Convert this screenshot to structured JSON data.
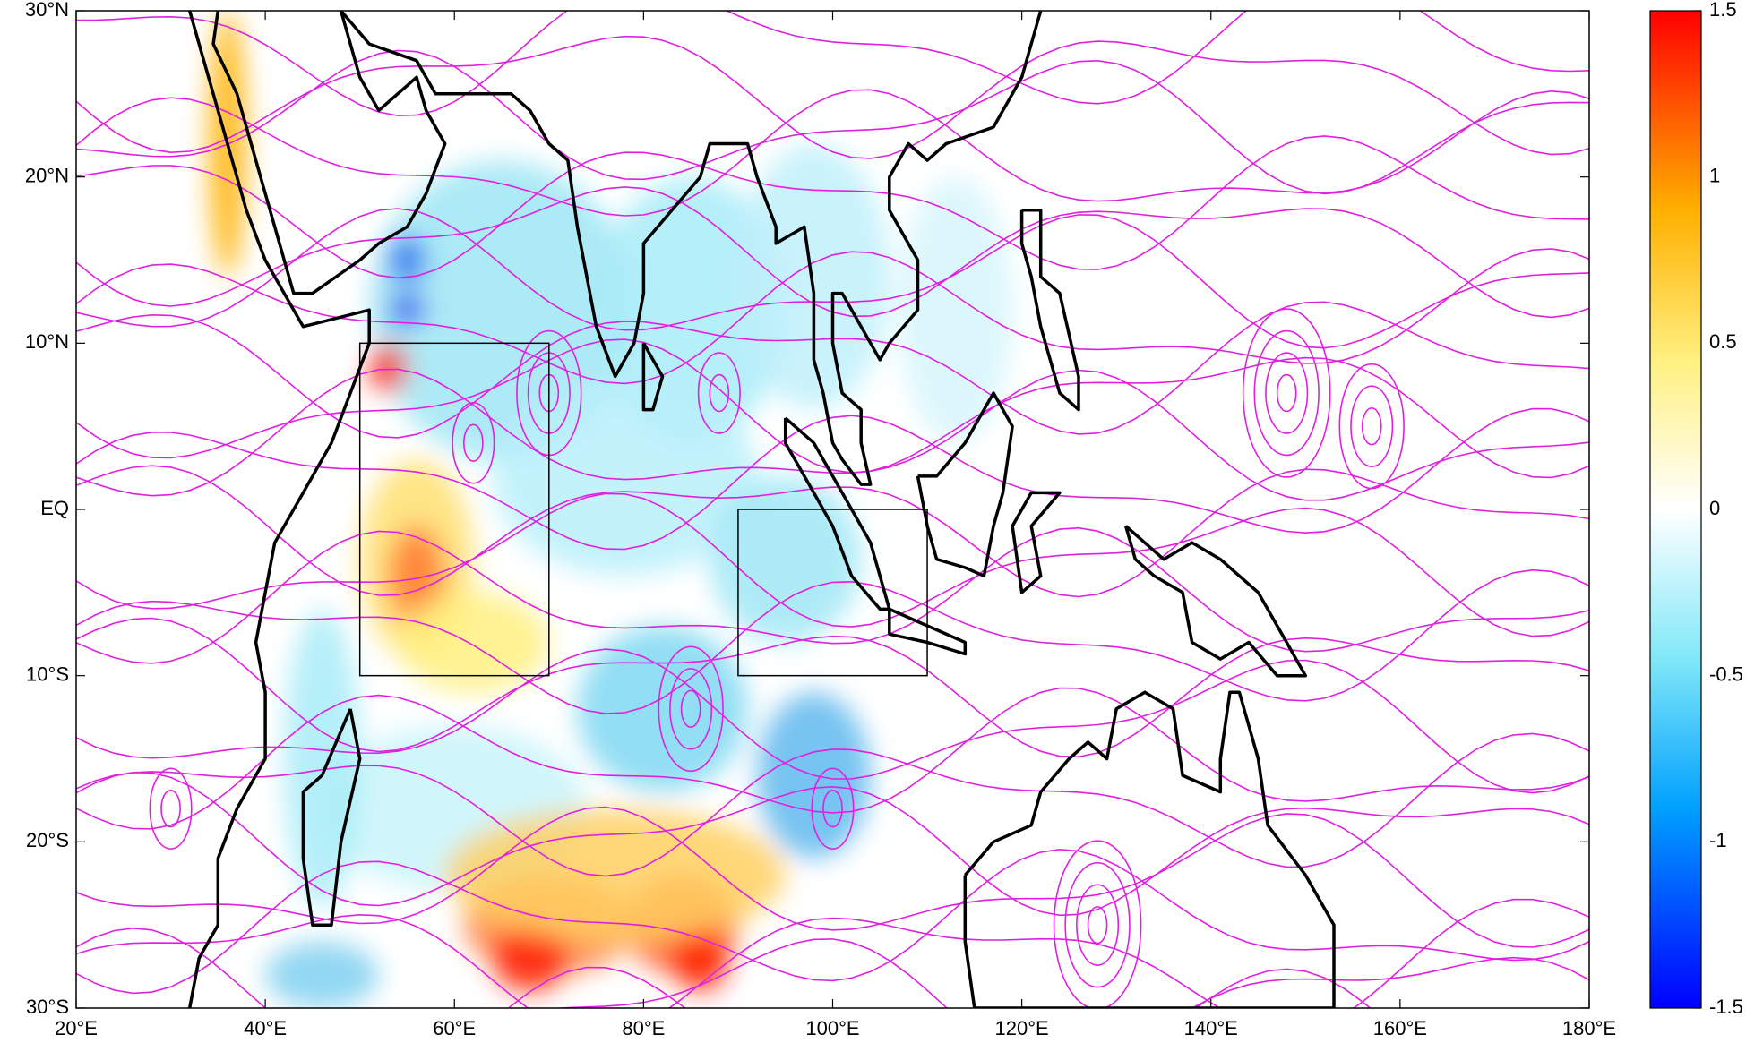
{
  "chart_data": {
    "type": "map",
    "xlim": [
      20,
      180
    ],
    "ylim": [
      -30,
      30
    ],
    "xticks": [
      {
        "value": 20,
        "label": "20°E"
      },
      {
        "value": 40,
        "label": "40°E"
      },
      {
        "value": 60,
        "label": "60°E"
      },
      {
        "value": 80,
        "label": "80°E"
      },
      {
        "value": 100,
        "label": "100°E"
      },
      {
        "value": 120,
        "label": "120°E"
      },
      {
        "value": 140,
        "label": "140°E"
      },
      {
        "value": 160,
        "label": "160°E"
      },
      {
        "value": 180,
        "label": "180°E"
      }
    ],
    "yticks": [
      {
        "value": 30,
        "label": "30°N"
      },
      {
        "value": 20,
        "label": "20°N"
      },
      {
        "value": 10,
        "label": "10°N"
      },
      {
        "value": 0,
        "label": "EQ"
      },
      {
        "value": -10,
        "label": "10°S"
      },
      {
        "value": -20,
        "label": "20°S"
      },
      {
        "value": -30,
        "label": "30°S"
      }
    ],
    "colorbar": {
      "clim": [
        -1.5,
        1.5
      ],
      "ticks": [
        1.5,
        1,
        0.5,
        0,
        -0.5,
        -1,
        -1.5
      ]
    },
    "boxes": [
      {
        "lon": [
          50,
          70
        ],
        "lat": [
          -10,
          10
        ]
      },
      {
        "lon": [
          90,
          110
        ],
        "lat": [
          -10,
          0
        ]
      }
    ]
  }
}
